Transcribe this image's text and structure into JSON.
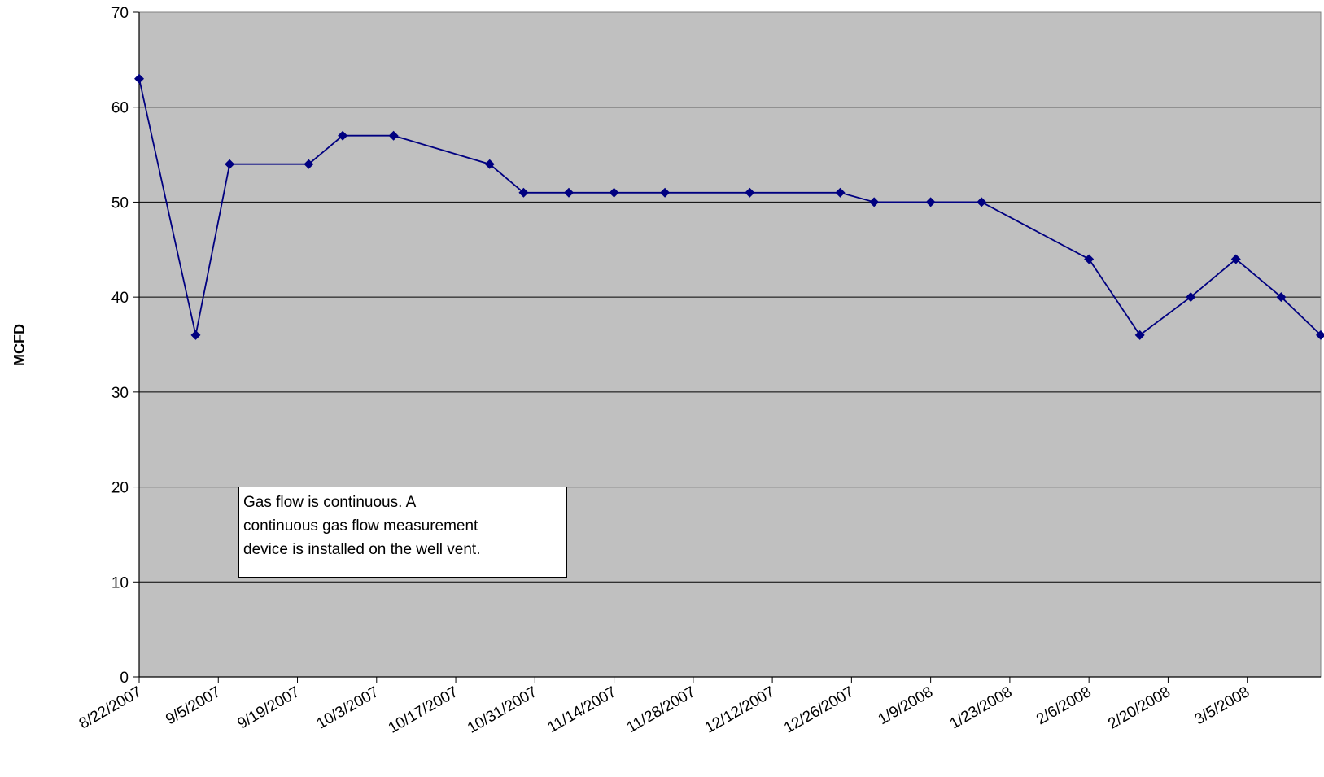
{
  "chart_data": {
    "type": "line",
    "title": "",
    "xlabel": "",
    "ylabel": "MCFD",
    "ylim": [
      0,
      70
    ],
    "y_ticks": [
      0,
      10,
      20,
      30,
      40,
      50,
      60,
      70
    ],
    "x_tick_labels": [
      "8/22/2007",
      "9/5/2007",
      "9/19/2007",
      "10/3/2007",
      "10/17/2007",
      "10/31/2007",
      "11/14/2007",
      "11/28/2007",
      "12/12/2007",
      "12/26/2007",
      "1/9/2008",
      "1/23/2008",
      "2/6/2008",
      "2/20/2008",
      "3/5/2008"
    ],
    "x_range": [
      "2007-08-22",
      "2008-03-18"
    ],
    "grid": "horizontal",
    "plot_background": "#C0C0C0",
    "series": [
      {
        "color": "#000080",
        "marker": "diamond",
        "x": [
          "2007-08-22",
          "2007-09-01",
          "2007-09-07",
          "2007-09-21",
          "2007-09-27",
          "2007-10-06",
          "2007-10-23",
          "2007-10-29",
          "2007-11-06",
          "2007-11-14",
          "2007-11-23",
          "2007-12-08",
          "2007-12-24",
          "2007-12-30",
          "2008-01-09",
          "2008-01-18",
          "2008-02-06",
          "2008-02-15",
          "2008-02-24",
          "2008-03-03",
          "2008-03-11",
          "2008-03-18"
        ],
        "values": [
          63,
          36,
          54,
          54,
          57,
          57,
          54,
          51,
          51,
          51,
          51,
          51,
          51,
          50,
          50,
          50,
          44,
          36,
          40,
          44,
          40,
          36
        ]
      }
    ],
    "annotation": {
      "lines": [
        "Gas flow is continuous.  A",
        "continuous gas flow measurement",
        "device is installed on the well vent."
      ]
    }
  }
}
